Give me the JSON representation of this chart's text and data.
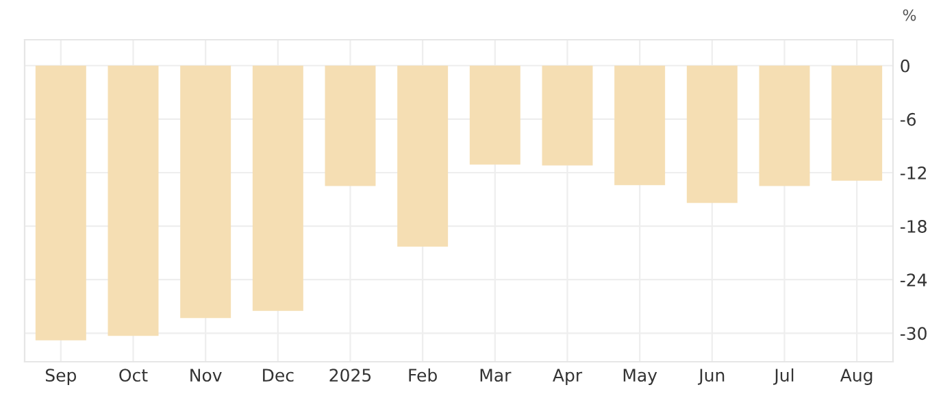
{
  "chart_data": {
    "type": "bar",
    "ylabel": "%",
    "categories": [
      "Sep",
      "Oct",
      "Nov",
      "Dec",
      "2025",
      "Feb",
      "Mar",
      "Apr",
      "May",
      "Jun",
      "Jul",
      "Aug"
    ],
    "values": [
      -30.8,
      -30.3,
      -28.3,
      -27.5,
      -13.5,
      -20.3,
      -11.1,
      -11.2,
      -13.4,
      -15.4,
      -13.5,
      -12.9
    ],
    "color": "#f5deb3",
    "ylim": [
      -33.2,
      2.9
    ],
    "yticks": [
      0,
      -6,
      -12,
      -18,
      -24,
      -30
    ],
    "grid": true
  }
}
